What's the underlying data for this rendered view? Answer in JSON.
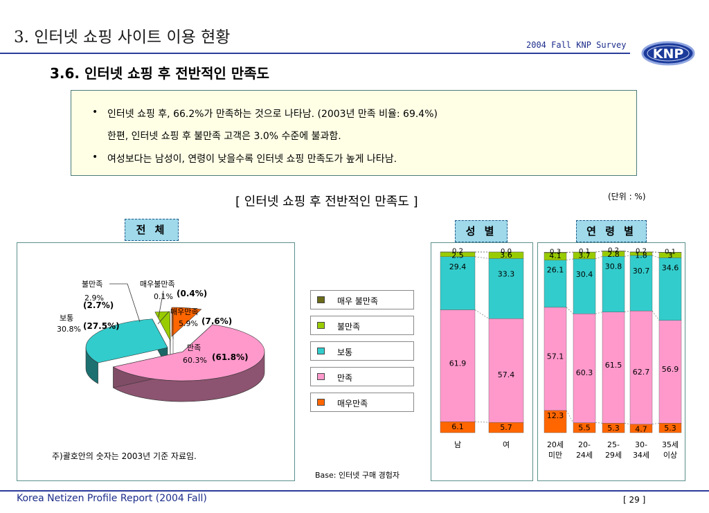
{
  "header": {
    "main_title": "3. 인터넷 쇼핑 사이트 이용 현황",
    "survey": "2004 Fall KNP Survey",
    "logo_text": "KNP",
    "section_title": "3.6.  인터넷 쇼핑 후 전반적인 만족도"
  },
  "summary": {
    "bullet": "•",
    "line1": "인터넷 쇼핑 후, 66.2%가 만족하는 것으로 나타남. (2003년 만족 비율: 69.4%)",
    "line2": "한편, 인터넷 쇼핑 후 불만족 고객은 3.0% 수준에 불과함.",
    "line3": "여성보다는 남성이, 연령이 낮을수록 인터넷 쇼핑 만족도가 높게 나타남."
  },
  "chart_title": "[ 인터넷 쇼핑 후 전반적인 만족도 ]",
  "unit": "(단위 : %)",
  "panels": {
    "total": "전 체",
    "gender": "성 별",
    "age": "연 령 별"
  },
  "note": "주)괄호안의 숫자는 2003년 기준 자료임.",
  "base": "Base: 인터넷 구매 경험자",
  "legend": [
    {
      "label": "매우 불만족",
      "color": "#6b6b1a"
    },
    {
      "label": "불만족",
      "color": "#99cc00"
    },
    {
      "label": "보통",
      "color": "#33cccc"
    },
    {
      "label": "만족",
      "color": "#ff99cc"
    },
    {
      "label": "매우만족",
      "color": "#ff6600"
    }
  ],
  "colors": {
    "very_dissatisfied": "#6b6b1a",
    "dissatisfied": "#99cc00",
    "neutral": "#33cccc",
    "satisfied": "#ff99cc",
    "very_satisfied": "#ff6600"
  },
  "chart_data": [
    {
      "type": "pie",
      "slices": [
        {
          "name": "매우만족",
          "value": 5.9,
          "prev": "(7.6%)",
          "label": "매우만족",
          "value_text": "5.9%"
        },
        {
          "name": "만족",
          "value": 60.3,
          "prev": "(61.8%)",
          "label": "만족",
          "value_text": "60.3%"
        },
        {
          "name": "보통",
          "value": 30.8,
          "prev": "(27.5%)",
          "label": "보통",
          "value_text": "30.8%"
        },
        {
          "name": "불만족",
          "value": 2.9,
          "prev": "(2.7%)",
          "label": "불만족",
          "value_text": "2.9%"
        },
        {
          "name": "매우불만족",
          "value": 0.1,
          "prev": "(0.4%)",
          "label": "매우불만족",
          "value_text": "0.1%"
        }
      ]
    },
    {
      "type": "bar",
      "stacked": true,
      "categories": [
        "남",
        "여"
      ],
      "series": [
        {
          "name": "매우만족",
          "values": [
            6.1,
            5.7
          ]
        },
        {
          "name": "만족",
          "values": [
            61.9,
            57.4
          ]
        },
        {
          "name": "보통",
          "values": [
            29.4,
            33.3
          ]
        },
        {
          "name": "불만족",
          "values": [
            2.5,
            3.6
          ]
        },
        {
          "name": "매우 불만족",
          "values": [
            0.2,
            0.0
          ]
        }
      ]
    },
    {
      "type": "bar",
      "stacked": true,
      "categories": [
        "20세 미만",
        "20-24세",
        "25-29세",
        "30-34세",
        "35세 이상"
      ],
      "category_lines": [
        [
          "20세",
          "미만"
        ],
        [
          "20-",
          "24세"
        ],
        [
          "25-",
          "29세"
        ],
        [
          "30-",
          "34세"
        ],
        [
          "35세",
          "이상"
        ]
      ],
      "series": [
        {
          "name": "매우만족",
          "values": [
            12.3,
            5.5,
            5.3,
            4.7,
            5.3
          ]
        },
        {
          "name": "만족",
          "values": [
            57.1,
            60.3,
            61.5,
            62.7,
            56.9
          ]
        },
        {
          "name": "보통",
          "values": [
            26.1,
            30.4,
            30.8,
            30.7,
            34.6
          ]
        },
        {
          "name": "불만족",
          "values": [
            4.1,
            3.7,
            2.8,
            1.8,
            3
          ]
        },
        {
          "name": "매우 불만족",
          "values": [
            0.3,
            0.1,
            0.2,
            0.2,
            0.1
          ]
        }
      ]
    }
  ],
  "footer": {
    "left": "Korea Netizen Profile Report (2004 Fall)",
    "page": "[ 29 ]"
  }
}
